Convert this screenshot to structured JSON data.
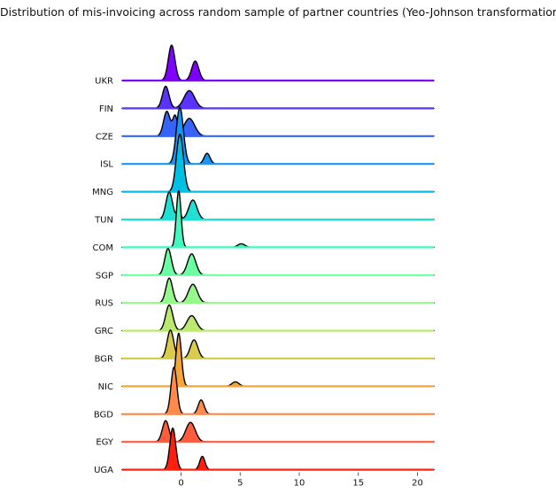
{
  "chart_data": {
    "type": "ridgeline",
    "title": "Distribution of mis-invoicing across random sample of partner countries (Yeo-Johnson transformation)",
    "xlabel": "",
    "ylabel": "",
    "xlim": [
      -5,
      21.5
    ],
    "xticks": [
      0,
      5,
      10,
      15,
      20
    ],
    "xtick_labels": [
      "0",
      "5",
      "10",
      "15",
      "20"
    ],
    "grid": false,
    "legend": "none",
    "series": [
      {
        "name": "UKR",
        "color": "#8000ff",
        "components": [
          {
            "mu": -0.8,
            "sigma": 0.28,
            "h": 40
          },
          {
            "mu": 1.2,
            "sigma": 0.3,
            "h": 22
          }
        ]
      },
      {
        "name": "FIN",
        "color": "#5a33fe",
        "components": [
          {
            "mu": -1.3,
            "sigma": 0.28,
            "h": 25
          },
          {
            "mu": 0.7,
            "sigma": 0.45,
            "h": 20
          }
        ]
      },
      {
        "name": "CZE",
        "color": "#3664fb",
        "components": [
          {
            "mu": -1.2,
            "sigma": 0.28,
            "h": 28
          },
          {
            "mu": -0.5,
            "sigma": 0.2,
            "h": 22
          },
          {
            "mu": 0.7,
            "sigma": 0.45,
            "h": 20
          }
        ]
      },
      {
        "name": "ISL",
        "color": "#1996f3",
        "components": [
          {
            "mu": -0.1,
            "sigma": 0.3,
            "h": 64
          },
          {
            "mu": 2.2,
            "sigma": 0.25,
            "h": 12
          }
        ]
      },
      {
        "name": "MNG",
        "color": "#00bfe5",
        "components": [
          {
            "mu": -0.1,
            "sigma": 0.3,
            "h": 65
          }
        ]
      },
      {
        "name": "TUN",
        "color": "#1ee1d3",
        "components": [
          {
            "mu": -1.0,
            "sigma": 0.28,
            "h": 31
          },
          {
            "mu": -0.2,
            "sigma": 0.15,
            "h": 12
          },
          {
            "mu": 1.0,
            "sigma": 0.35,
            "h": 22
          }
        ]
      },
      {
        "name": "COM",
        "color": "#43f8bf",
        "components": [
          {
            "mu": -0.2,
            "sigma": 0.2,
            "h": 64
          },
          {
            "mu": 5.1,
            "sigma": 0.3,
            "h": 4
          }
        ]
      },
      {
        "name": "SGP",
        "color": "#6bfea4",
        "components": [
          {
            "mu": -1.1,
            "sigma": 0.28,
            "h": 30
          },
          {
            "mu": 0.9,
            "sigma": 0.35,
            "h": 24
          }
        ]
      },
      {
        "name": "RUS",
        "color": "#95f88b",
        "components": [
          {
            "mu": -1.0,
            "sigma": 0.28,
            "h": 28
          },
          {
            "mu": 1.0,
            "sigma": 0.38,
            "h": 21
          }
        ]
      },
      {
        "name": "GRC",
        "color": "#bbe86e",
        "components": [
          {
            "mu": -1.0,
            "sigma": 0.3,
            "h": 29
          },
          {
            "mu": 0.9,
            "sigma": 0.4,
            "h": 17
          }
        ]
      },
      {
        "name": "BGR",
        "color": "#d9cb4d",
        "components": [
          {
            "mu": -0.9,
            "sigma": 0.28,
            "h": 32
          },
          {
            "mu": 1.1,
            "sigma": 0.32,
            "h": 21
          }
        ]
      },
      {
        "name": "NIC",
        "color": "#f5a63a",
        "components": [
          {
            "mu": -0.2,
            "sigma": 0.23,
            "h": 60
          },
          {
            "mu": 4.6,
            "sigma": 0.3,
            "h": 5
          }
        ]
      },
      {
        "name": "BGD",
        "color": "#ff8a4a",
        "components": [
          {
            "mu": -0.6,
            "sigma": 0.25,
            "h": 53
          },
          {
            "mu": 1.7,
            "sigma": 0.25,
            "h": 16
          }
        ]
      },
      {
        "name": "EGY",
        "color": "#ff5c3e",
        "components": [
          {
            "mu": -1.3,
            "sigma": 0.28,
            "h": 24
          },
          {
            "mu": 0.8,
            "sigma": 0.4,
            "h": 22
          }
        ]
      },
      {
        "name": "UGA",
        "color": "#ff1f0f",
        "components": [
          {
            "mu": -0.7,
            "sigma": 0.25,
            "h": 47
          },
          {
            "mu": 1.8,
            "sigma": 0.22,
            "h": 15
          }
        ]
      }
    ]
  }
}
